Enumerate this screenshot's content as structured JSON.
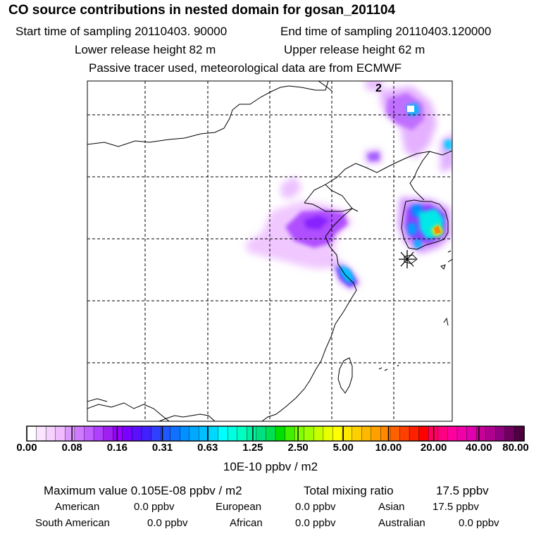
{
  "header": {
    "title": "CO  source contributions in nested domain for gosan_201104",
    "start_label": "Start time of sampling 20110403. 90000",
    "end_label": "End time of sampling 20110403.120000",
    "lower_label": "Lower release height   82 m",
    "upper_label": "Upper release height   62 m",
    "note": "Passive tracer used, meteorological data are from ECMWF"
  },
  "map": {
    "panel_label": "2",
    "receptor_marker": "asterisk",
    "gridline_style": "dashed"
  },
  "colorbar": {
    "tick_labels": [
      "0.00",
      "0.08",
      "0.16",
      "0.31",
      "0.63",
      "1.25",
      "2.50",
      "5.00",
      "10.00",
      "20.00",
      "40.00",
      "80.00"
    ],
    "unit_label": "10E-10 ppbv / m2",
    "colors": [
      "#ffffff",
      "#fbe6ff",
      "#f6d2ff",
      "#f0bcff",
      "#dd99ff",
      "#d07bff",
      "#c060ff",
      "#b040ff",
      "#a020f0",
      "#9a00ff",
      "#7a00ff",
      "#5a10ff",
      "#4020ff",
      "#3040ff",
      "#2058ff",
      "#1070ff",
      "#0090ff",
      "#00a8ff",
      "#00c0ff",
      "#00d8ff",
      "#00ffff",
      "#00ffe0",
      "#00ffc0",
      "#00f0a0",
      "#00e080",
      "#00e050",
      "#00e000",
      "#40f000",
      "#80ff00",
      "#a0ff00",
      "#c8ff00",
      "#e8ff00",
      "#ffff00",
      "#ffe800",
      "#ffd000",
      "#ffb800",
      "#ffa000",
      "#ff8800",
      "#ff6000",
      "#ff4000",
      "#ff2000",
      "#ff0000",
      "#ff0060",
      "#ff0080",
      "#ff00a0",
      "#f000a8",
      "#e000b0",
      "#c80098",
      "#b00090",
      "#900080",
      "#700060",
      "#500040"
    ]
  },
  "summary": {
    "max_label": "Maximum value  0.105E-08 ppbv / m2",
    "total_label": "Total mixing ratio",
    "total_value": "17.5 ppbv",
    "regions": [
      {
        "name": "American",
        "value": "0.0 ppbv"
      },
      {
        "name": "European",
        "value": "0.0 ppbv"
      },
      {
        "name": "Asian",
        "value": "17.5 ppbv"
      },
      {
        "name": "South American",
        "value": "0.0 ppbv"
      },
      {
        "name": "African",
        "value": "0.0 ppbv"
      },
      {
        "name": "Australian",
        "value": "0.0 ppbv"
      }
    ]
  },
  "chart_data": {
    "type": "heatmap",
    "title": "CO  source contributions in nested domain for gosan_201104",
    "value_unit": "10E-10 ppbv / m2",
    "color_scale_ticks": [
      0.0,
      0.08,
      0.16,
      0.31,
      0.63,
      1.25,
      2.5,
      5.0,
      10.0,
      20.0,
      40.0,
      80.0
    ],
    "maximum_value": "0.105E-08 ppbv / m2",
    "total_mixing_ratio_ppbv": 17.5,
    "legend": "bottom"
  }
}
